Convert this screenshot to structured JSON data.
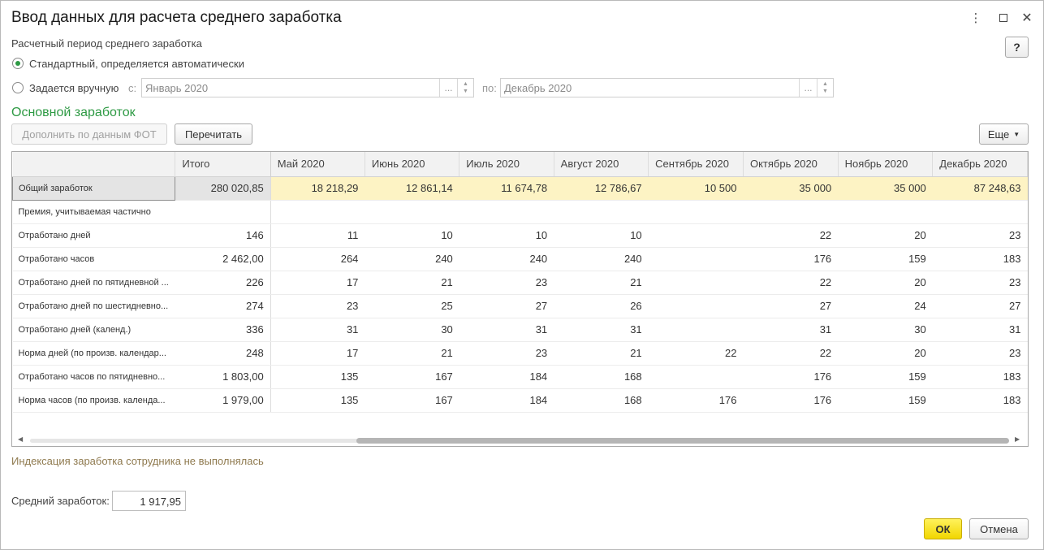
{
  "window": {
    "title": "Ввод данных для расчета среднего заработка",
    "help_label": "?"
  },
  "period": {
    "label": "Расчетный период среднего заработка",
    "option_auto": "Стандартный, определяется автоматически",
    "option_manual": "Задается вручную",
    "from_label": "с:",
    "from_value": "Январь 2020",
    "to_label": "по:",
    "to_value": "Декабрь 2020",
    "dots": "...",
    "selected": "auto"
  },
  "main": {
    "section_title": "Основной заработок",
    "fill_button": "Дополнить по данным ФОТ",
    "recalc_button": "Перечитать",
    "more_button": "Еще"
  },
  "table": {
    "columns": [
      "",
      "Итого",
      "Май 2020",
      "Июнь 2020",
      "Июль 2020",
      "Август 2020",
      "Сентябрь 2020",
      "Октябрь 2020",
      "Ноябрь 2020",
      "Декабрь 2020"
    ],
    "rows": [
      {
        "name": "Общий заработок",
        "values": [
          "280 020,85",
          "18 218,29",
          "12 861,14",
          "11 674,78",
          "12 786,67",
          "10 500",
          "35 000",
          "35 000",
          "87 248,63"
        ]
      },
      {
        "name": "Премия, учитываемая частично",
        "values": [
          "",
          "",
          "",
          "",
          "",
          "",
          "",
          "",
          ""
        ]
      },
      {
        "name": "Отработано дней",
        "values": [
          "146",
          "11",
          "10",
          "10",
          "10",
          "",
          "22",
          "20",
          "23"
        ]
      },
      {
        "name": "Отработано часов",
        "values": [
          "2 462,00",
          "264",
          "240",
          "240",
          "240",
          "",
          "176",
          "159",
          "183"
        ]
      },
      {
        "name": "Отработано дней по пятидневной ...",
        "values": [
          "226",
          "17",
          "21",
          "23",
          "21",
          "",
          "22",
          "20",
          "23"
        ]
      },
      {
        "name": "Отработано дней по шестидневно...",
        "values": [
          "274",
          "23",
          "25",
          "27",
          "26",
          "",
          "27",
          "24",
          "27"
        ]
      },
      {
        "name": "Отработано дней (календ.)",
        "values": [
          "336",
          "31",
          "30",
          "31",
          "31",
          "",
          "31",
          "30",
          "31"
        ]
      },
      {
        "name": "Норма дней (по произв. календар...",
        "values": [
          "248",
          "17",
          "21",
          "23",
          "21",
          "22",
          "22",
          "20",
          "23"
        ]
      },
      {
        "name": "Отработано часов по пятидневно...",
        "values": [
          "1 803,00",
          "135",
          "167",
          "184",
          "168",
          "",
          "176",
          "159",
          "183"
        ]
      },
      {
        "name": "Норма часов (по произв. календа...",
        "values": [
          "1 979,00",
          "135",
          "167",
          "184",
          "168",
          "176",
          "176",
          "159",
          "183"
        ]
      }
    ]
  },
  "footer": {
    "indexation_note": "Индексация заработка сотрудника не выполнялась",
    "average_label": "Средний заработок:",
    "average_value": "1 917,95",
    "ok_button": "ОК",
    "cancel_button": "Отмена"
  },
  "colors": {
    "accent_green": "#2e9a44",
    "highlight_row": "#fdf3c4",
    "ok_yellow": "#f1d600"
  }
}
